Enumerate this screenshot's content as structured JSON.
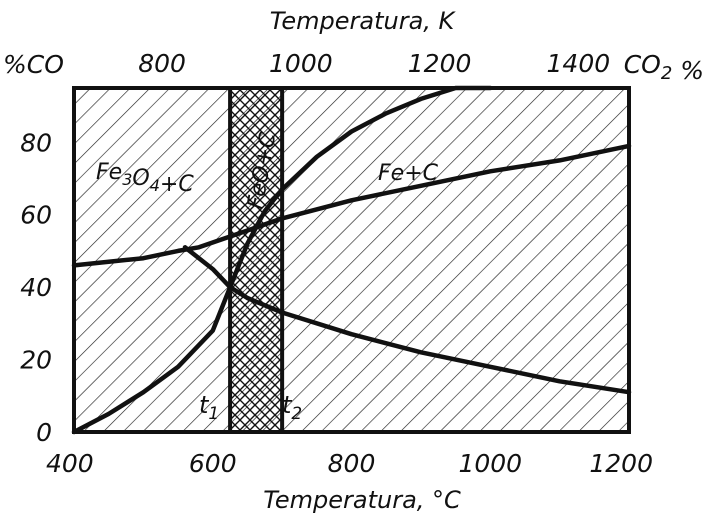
{
  "chart_data": {
    "type": "line",
    "title": "",
    "xlabel": "Temperatura, °C",
    "x2label": "Temperatura, K",
    "left_axis_label": "%CO",
    "right_axis_label": "CO2 %",
    "xlim": [
      400,
      1200
    ],
    "ylim": [
      0,
      95
    ],
    "x_ticks": [
      400,
      600,
      800,
      1000,
      1200
    ],
    "x2_ticks": [
      800,
      1000,
      1200,
      1400
    ],
    "y_ticks": [
      0,
      20,
      40,
      60,
      80
    ],
    "grid": false,
    "legend": "none",
    "series": [
      {
        "id": "reduction_curve_rising",
        "x": [
          400,
          450,
          500,
          550,
          600,
          625,
          650,
          675,
          700,
          750,
          800,
          850,
          900,
          950,
          1000
        ],
        "y": [
          0,
          5,
          11,
          18,
          28,
          40,
          52,
          61,
          67,
          76,
          83,
          88,
          92,
          95,
          96
        ]
      },
      {
        "id": "boudouard_line_upper",
        "x": [
          400,
          450,
          500,
          550,
          580,
          625,
          700,
          800,
          900,
          1000,
          1100,
          1200
        ],
        "y": [
          46,
          47,
          48,
          50,
          51,
          54,
          59,
          64,
          68,
          72,
          75,
          79
        ]
      },
      {
        "id": "oxide_curve_falling",
        "x": [
          560,
          600,
          625,
          650,
          700,
          800,
          900,
          1000,
          1100,
          1200
        ],
        "y": [
          51,
          45,
          40,
          37,
          33,
          27,
          22,
          18,
          14,
          11
        ]
      }
    ],
    "regions": [
      {
        "id": "fe3o4",
        "label": "Fe3O4+C"
      },
      {
        "id": "feo",
        "label": "FeO+C"
      },
      {
        "id": "fe",
        "label": "Fe+C"
      }
    ],
    "markers": [
      {
        "id": "t1",
        "label": "t1",
        "x": 625
      },
      {
        "id": "t2",
        "label": "t2",
        "x": 700
      }
    ]
  }
}
